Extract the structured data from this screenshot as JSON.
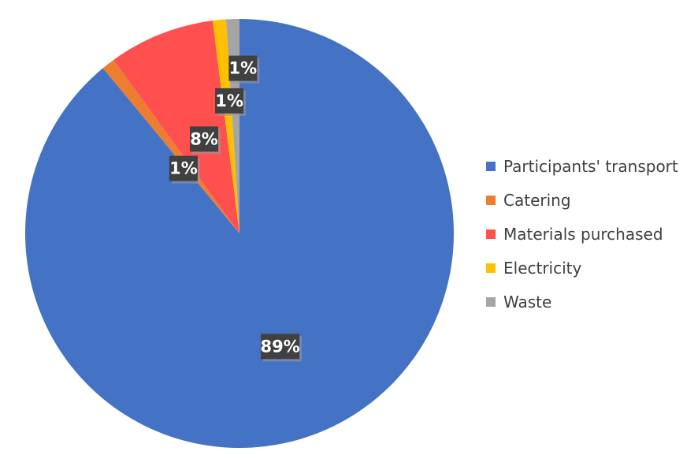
{
  "chart_data": {
    "type": "pie",
    "title": "",
    "legend_position": "right",
    "start_angle_deg": 0,
    "direction": "clockwise",
    "slices": [
      {
        "name": "Participants' transport",
        "value": 89,
        "label": "89%",
        "color": "#4472C4"
      },
      {
        "name": "Catering",
        "value": 1,
        "label": "1%",
        "color": "#ED7D31"
      },
      {
        "name": "Materials purchased",
        "value": 8,
        "label": "8%",
        "color": "#FF5050"
      },
      {
        "name": "Electricity",
        "value": 1,
        "label": "1%",
        "color": "#FFC000"
      },
      {
        "name": "Waste",
        "value": 1,
        "label": "1%",
        "color": "#A5A5A5"
      }
    ],
    "label_style": {
      "box_color": "#404040",
      "text_color": "#FFFFFF",
      "shadow_color": "#9A9A9A"
    }
  }
}
